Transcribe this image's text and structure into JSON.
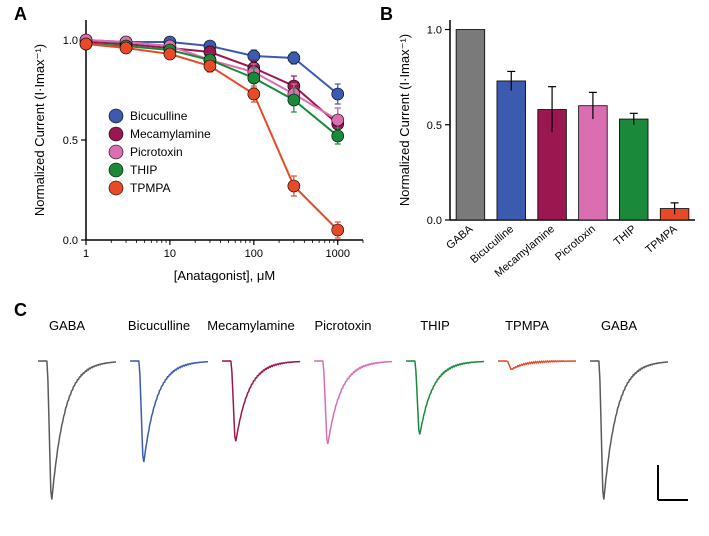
{
  "panelA": {
    "label": "A",
    "label_fontsize": 18,
    "chart": {
      "type": "line-scatter",
      "xlabel": "[Anatagonist], μM",
      "ylabel": "Normalized Current (I·Imax⁻¹)",
      "label_fontsize": 13,
      "tick_fontsize": 11,
      "xscale": "log",
      "xlim": [
        1,
        2000
      ],
      "ylim": [
        0,
        1.1
      ],
      "xticks": [
        1,
        10,
        100,
        1000
      ],
      "yticks": [
        0.0,
        0.5,
        1.0
      ],
      "background_color": "#ffffff",
      "axis_color": "#000000",
      "marker_size": 6,
      "line_width": 2,
      "series": [
        {
          "name": "Bicuculline",
          "color": "#3a5bb0",
          "x": [
            1,
            3,
            10,
            30,
            100,
            300,
            1000
          ],
          "y": [
            1.0,
            0.99,
            0.99,
            0.97,
            0.92,
            0.91,
            0.73
          ],
          "err": [
            0.02,
            0.02,
            0.02,
            0.02,
            0.03,
            0.03,
            0.05
          ]
        },
        {
          "name": "Mecamylamine",
          "color": "#9a1750",
          "x": [
            1,
            3,
            10,
            30,
            100,
            300,
            1000
          ],
          "y": [
            0.99,
            0.98,
            0.96,
            0.94,
            0.86,
            0.77,
            0.58
          ],
          "err": [
            0.02,
            0.02,
            0.02,
            0.03,
            0.04,
            0.05,
            0.08
          ]
        },
        {
          "name": "Picrotoxin",
          "color": "#d96fb0",
          "x": [
            1,
            3,
            10,
            30,
            100,
            300,
            1000
          ],
          "y": [
            1.0,
            0.99,
            0.97,
            0.9,
            0.84,
            0.73,
            0.6
          ],
          "err": [
            0.02,
            0.02,
            0.02,
            0.03,
            0.04,
            0.05,
            0.06
          ]
        },
        {
          "name": "THIP",
          "color": "#1a8a3a",
          "x": [
            1,
            3,
            10,
            30,
            100,
            300,
            1000
          ],
          "y": [
            0.98,
            0.97,
            0.95,
            0.9,
            0.81,
            0.7,
            0.52
          ],
          "err": [
            0.02,
            0.02,
            0.02,
            0.03,
            0.05,
            0.06,
            0.04
          ]
        },
        {
          "name": "TPMPA",
          "color": "#e84a27",
          "x": [
            1,
            3,
            10,
            30,
            100,
            300,
            1000
          ],
          "y": [
            0.98,
            0.96,
            0.93,
            0.87,
            0.73,
            0.27,
            0.05
          ],
          "err": [
            0.02,
            0.02,
            0.02,
            0.03,
            0.04,
            0.05,
            0.04
          ]
        }
      ],
      "legend_fontsize": 12,
      "legend_marker_size": 7
    }
  },
  "panelB": {
    "label": "B",
    "label_fontsize": 18,
    "chart": {
      "type": "bar",
      "ylabel": "Normalized Current (I·Imax⁻¹)",
      "label_fontsize": 13,
      "tick_fontsize": 11,
      "ylim": [
        0,
        1.05
      ],
      "yticks": [
        0.0,
        0.5,
        1.0
      ],
      "bar_width": 0.7,
      "background_color": "#ffffff",
      "axis_color": "#000000",
      "bars": [
        {
          "label": "GABA",
          "value": 1.0,
          "err": 0.0,
          "color": "#7a7a7a"
        },
        {
          "label": "Bicuculline",
          "value": 0.73,
          "err": 0.05,
          "color": "#3a5bb0"
        },
        {
          "label": "Mecamylamine",
          "value": 0.58,
          "err": 0.12,
          "color": "#9a1750"
        },
        {
          "label": "Picrotoxin",
          "value": 0.6,
          "err": 0.07,
          "color": "#d96fb0"
        },
        {
          "label": "THIP",
          "value": 0.53,
          "err": 0.03,
          "color": "#1a8a3a"
        },
        {
          "label": "TPMPA",
          "value": 0.06,
          "err": 0.03,
          "color": "#e84a27"
        }
      ]
    }
  },
  "panelC": {
    "label": "C",
    "label_fontsize": 18,
    "traces": {
      "type": "current-traces",
      "label_fontsize": 13,
      "trace_width": 1.5,
      "scalebar_color": "#000000",
      "items": [
        {
          "label": "GABA",
          "color": "#5a5a5a",
          "amplitude": 1.0
        },
        {
          "label": "Bicuculline",
          "color": "#3a5bb0",
          "amplitude": 0.73
        },
        {
          "label": "Mecamylamine",
          "color": "#9a1750",
          "amplitude": 0.58
        },
        {
          "label": "Picrotoxin",
          "color": "#d96fb0",
          "amplitude": 0.6
        },
        {
          "label": "THIP",
          "color": "#1a8a3a",
          "amplitude": 0.53
        },
        {
          "label": "TPMPA",
          "color": "#e84a27",
          "amplitude": 0.06
        },
        {
          "label": "GABA",
          "color": "#5a5a5a",
          "amplitude": 1.0
        }
      ]
    }
  }
}
